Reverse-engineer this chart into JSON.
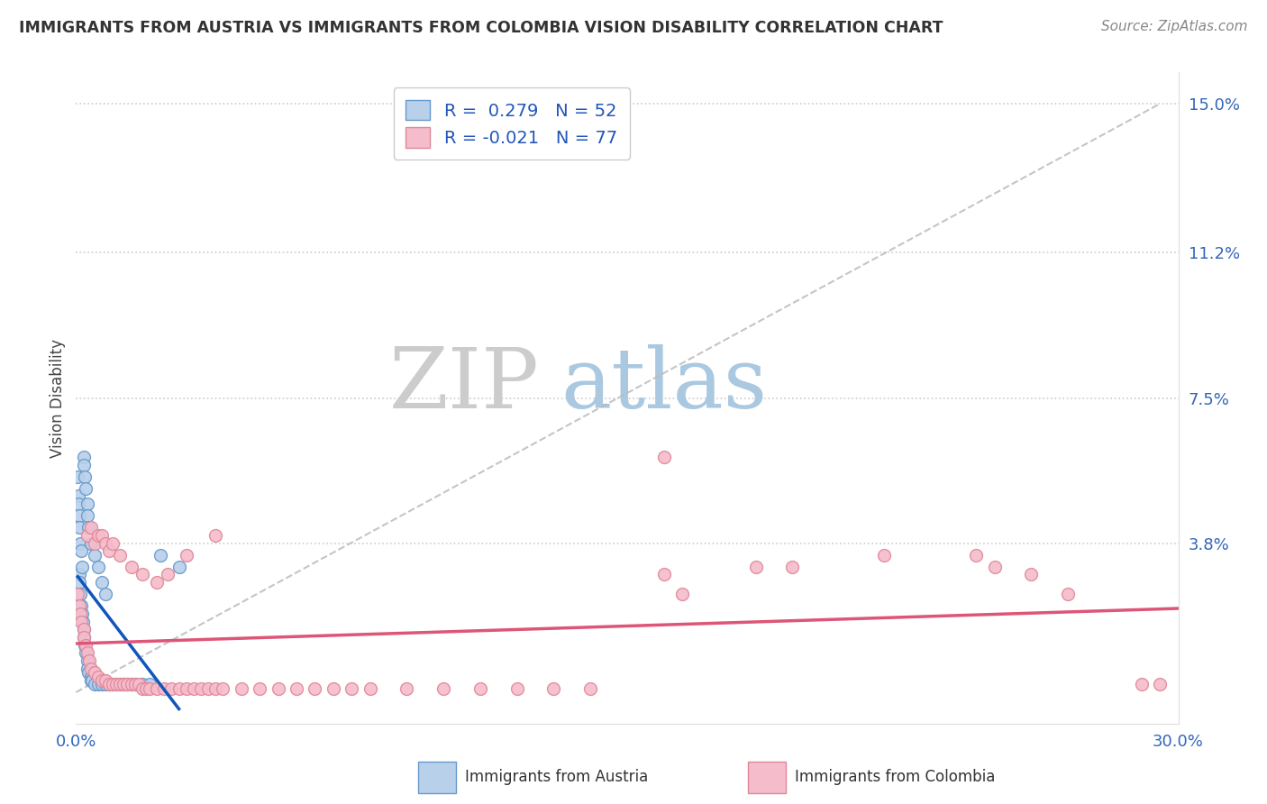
{
  "title": "IMMIGRANTS FROM AUSTRIA VS IMMIGRANTS FROM COLOMBIA VISION DISABILITY CORRELATION CHART",
  "source": "Source: ZipAtlas.com",
  "ylabel": "Vision Disability",
  "xlim": [
    0.0,
    0.3
  ],
  "ylim": [
    -0.008,
    0.158
  ],
  "xticks": [
    0.0,
    0.05,
    0.1,
    0.15,
    0.2,
    0.25,
    0.3
  ],
  "xticklabels": [
    "0.0%",
    "",
    "",
    "",
    "",
    "",
    "30.0%"
  ],
  "yticks_right": [
    0.0,
    0.038,
    0.075,
    0.112,
    0.15
  ],
  "ytick_labels_right": [
    "",
    "3.8%",
    "7.5%",
    "11.2%",
    "15.0%"
  ],
  "austria_R": 0.279,
  "austria_N": 52,
  "colombia_R": -0.021,
  "colombia_N": 77,
  "austria_color": "#b8d0ea",
  "austria_edge": "#6699cc",
  "colombia_color": "#f5bccb",
  "colombia_edge": "#e08898",
  "austria_line_color": "#1155bb",
  "colombia_line_color": "#dd5577",
  "background_color": "#ffffff",
  "grid_color": "#cccccc",
  "watermark_zip": "ZIP",
  "watermark_atlas": "atlas",
  "watermark_zip_color": "#c8d8e8",
  "watermark_atlas_color": "#b0c8e0",
  "austria_x": [
    0.0008,
    0.001,
    0.0012,
    0.0014,
    0.0016,
    0.0018,
    0.002,
    0.0022,
    0.0024,
    0.0026,
    0.003,
    0.0032,
    0.0034,
    0.004,
    0.0042,
    0.0044,
    0.005,
    0.006,
    0.007,
    0.008,
    0.009,
    0.01,
    0.011,
    0.012,
    0.013,
    0.014,
    0.015,
    0.016,
    0.018,
    0.02,
    0.0005,
    0.0006,
    0.0007,
    0.0008,
    0.001,
    0.0012,
    0.0014,
    0.0016,
    0.002,
    0.0022,
    0.0024,
    0.0026,
    0.003,
    0.0032,
    0.0034,
    0.004,
    0.005,
    0.006,
    0.007,
    0.008,
    0.023,
    0.028
  ],
  "austria_y": [
    0.03,
    0.028,
    0.025,
    0.022,
    0.02,
    0.018,
    0.016,
    0.014,
    0.012,
    0.01,
    0.008,
    0.006,
    0.005,
    0.004,
    0.003,
    0.003,
    0.002,
    0.002,
    0.002,
    0.002,
    0.002,
    0.002,
    0.002,
    0.002,
    0.002,
    0.002,
    0.002,
    0.002,
    0.002,
    0.002,
    0.055,
    0.05,
    0.048,
    0.045,
    0.042,
    0.038,
    0.036,
    0.032,
    0.06,
    0.058,
    0.055,
    0.052,
    0.048,
    0.045,
    0.042,
    0.038,
    0.035,
    0.032,
    0.028,
    0.025,
    0.035,
    0.032
  ],
  "colombia_x": [
    0.0005,
    0.001,
    0.0012,
    0.0015,
    0.002,
    0.0022,
    0.0025,
    0.003,
    0.0035,
    0.004,
    0.005,
    0.006,
    0.007,
    0.008,
    0.009,
    0.01,
    0.011,
    0.012,
    0.013,
    0.014,
    0.015,
    0.016,
    0.017,
    0.018,
    0.019,
    0.02,
    0.022,
    0.024,
    0.026,
    0.028,
    0.03,
    0.032,
    0.034,
    0.036,
    0.038,
    0.04,
    0.045,
    0.05,
    0.055,
    0.06,
    0.065,
    0.07,
    0.075,
    0.08,
    0.09,
    0.1,
    0.11,
    0.12,
    0.13,
    0.14,
    0.003,
    0.004,
    0.005,
    0.006,
    0.007,
    0.008,
    0.009,
    0.01,
    0.012,
    0.015,
    0.018,
    0.022,
    0.025,
    0.03,
    0.038,
    0.16,
    0.185,
    0.22,
    0.16,
    0.26,
    0.29,
    0.195,
    0.245,
    0.165,
    0.295,
    0.25,
    0.27
  ],
  "colombia_y": [
    0.025,
    0.022,
    0.02,
    0.018,
    0.016,
    0.014,
    0.012,
    0.01,
    0.008,
    0.006,
    0.005,
    0.004,
    0.003,
    0.003,
    0.002,
    0.002,
    0.002,
    0.002,
    0.002,
    0.002,
    0.002,
    0.002,
    0.002,
    0.001,
    0.001,
    0.001,
    0.001,
    0.001,
    0.001,
    0.001,
    0.001,
    0.001,
    0.001,
    0.001,
    0.001,
    0.001,
    0.001,
    0.001,
    0.001,
    0.001,
    0.001,
    0.001,
    0.001,
    0.001,
    0.001,
    0.001,
    0.001,
    0.001,
    0.001,
    0.001,
    0.04,
    0.042,
    0.038,
    0.04,
    0.04,
    0.038,
    0.036,
    0.038,
    0.035,
    0.032,
    0.03,
    0.028,
    0.03,
    0.035,
    0.04,
    0.03,
    0.032,
    0.035,
    0.06,
    0.03,
    0.002,
    0.032,
    0.035,
    0.025,
    0.002,
    0.032,
    0.025
  ]
}
